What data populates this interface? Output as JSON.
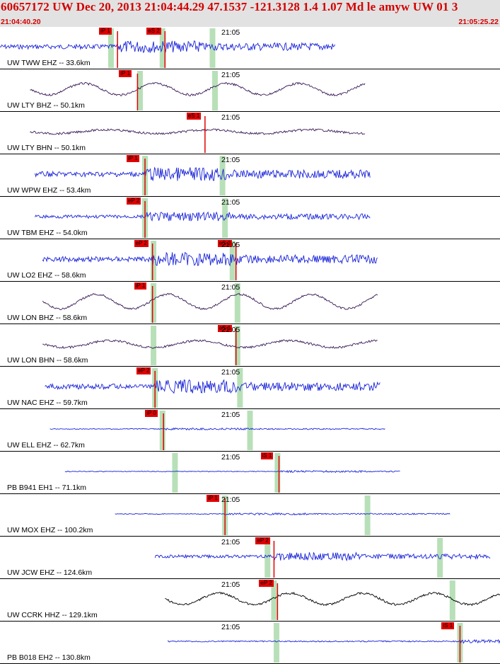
{
  "header": {
    "title": "60657172 UW Dec 20, 2013 21:04:44.29   47.1537 -121.3128  1.4 1.07 Md le amyw UW 01   3",
    "start_time": "21:04:40.20",
    "end_time": "21:05:25.22"
  },
  "colors": {
    "accent": "#d40000",
    "header_bg": "#e2e2e2",
    "pick_flag": "#e00000",
    "pick_line": "#e00000",
    "window_bar": "#b8e0b8",
    "trace_short_period": "#1a24d8",
    "trace_long_period": "#3a1a56",
    "trace_broadband": "#000000"
  },
  "panels": [
    {
      "label": "UW TWW EHZ -- 33.6km",
      "time_label": "21:05",
      "color": "blue",
      "amp": 0.18,
      "freq": 1.2,
      "trace_range": [
        0.0,
        0.67
      ],
      "picks": [
        {
          "label": "iP 1",
          "at": 0.235
        },
        {
          "label": "eS 2",
          "at": 0.33
        }
      ],
      "windows": [
        0.222,
        0.325,
        0.425
      ]
    },
    {
      "label": "UW LTY BHZ -- 50.1km",
      "time_label": "21:05",
      "color": "purple",
      "amp": 0.3,
      "freq": 0.1,
      "trace_range": [
        0.06,
        0.73
      ],
      "picks": [
        {
          "label": "iP 1",
          "at": 0.275
        }
      ],
      "windows": [
        0.28,
        0.43
      ]
    },
    {
      "label": "UW LTY BHN -- 50.1km",
      "time_label": "21:05",
      "color": "purple",
      "amp": 0.1,
      "freq": 0.07,
      "trace_range": [
        0.06,
        0.73
      ],
      "picks": [
        {
          "label": "eS 1",
          "at": 0.41
        }
      ],
      "windows": []
    },
    {
      "label": "UW WPW EHZ -- 53.4km",
      "time_label": "21:05",
      "color": "blue",
      "amp": 0.2,
      "freq": 1.2,
      "trace_range": [
        0.07,
        0.74
      ],
      "picks": [
        {
          "label": "iP 1",
          "at": 0.29
        }
      ],
      "windows": [
        0.29,
        0.445
      ]
    },
    {
      "label": "UW TBM EHZ -- 54.0km",
      "time_label": "21:05",
      "color": "blue",
      "amp": 0.13,
      "freq": 1.2,
      "trace_range": [
        0.07,
        0.74
      ],
      "picks": [
        {
          "label": "eP 2",
          "at": 0.29
        }
      ],
      "windows": [
        0.29,
        0.45
      ]
    },
    {
      "label": "UW LO2 EHZ -- 58.6km",
      "time_label": "21:05",
      "color": "blue",
      "amp": 0.2,
      "freq": 1.2,
      "trace_range": [
        0.085,
        0.755
      ],
      "picks": [
        {
          "label": "eP 2",
          "at": 0.305
        },
        {
          "label": "eS 2",
          "at": 0.472
        }
      ],
      "windows": [
        0.307,
        0.465
      ]
    },
    {
      "label": "UW LON BHZ -- 58.6km",
      "time_label": "21:05",
      "color": "purple",
      "amp": 0.38,
      "freq": 0.1,
      "trace_range": [
        0.085,
        0.755
      ],
      "picks": [
        {
          "label": "iP 1",
          "at": 0.305
        }
      ],
      "windows": [
        0.307,
        0.475
      ]
    },
    {
      "label": "UW LON BHN -- 58.6km",
      "time_label": "21:05",
      "color": "purple",
      "amp": 0.18,
      "freq": 0.08,
      "trace_range": [
        0.085,
        0.755
      ],
      "picks": [
        {
          "label": "eS 1",
          "at": 0.472
        }
      ],
      "windows": [
        0.307,
        0.475
      ]
    },
    {
      "label": "UW NAC EHZ -- 59.7km",
      "time_label": "21:05",
      "color": "blue",
      "amp": 0.2,
      "freq": 1.2,
      "trace_range": [
        0.09,
        0.76
      ],
      "picks": [
        {
          "label": "eP 2",
          "at": 0.31
        }
      ],
      "windows": [
        0.31,
        0.48
      ]
    },
    {
      "label": "UW ELL EHZ -- 62.7km",
      "time_label": "21:05",
      "color": "blue",
      "amp": 0.03,
      "freq": 1.2,
      "trace_range": [
        0.1,
        0.77
      ],
      "picks": [
        {
          "label": "iP 0",
          "at": 0.327
        }
      ],
      "windows": [
        0.325,
        0.5
      ]
    },
    {
      "label": "PB B941 EH1 -- 71.1km",
      "time_label": "21:05",
      "color": "blue",
      "amp": 0.03,
      "freq": 1.2,
      "trace_range": [
        0.13,
        0.8
      ],
      "picks": [
        {
          "label": "iS 1",
          "at": 0.558
        }
      ],
      "windows": [
        0.35,
        0.555
      ]
    },
    {
      "label": "UW MOX EHZ -- 100.2km",
      "time_label": "21:05",
      "color": "blue",
      "amp": 0.03,
      "freq": 1.2,
      "trace_range": [
        0.23,
        0.9
      ],
      "picks": [
        {
          "label": "iP 1",
          "at": 0.45
        }
      ],
      "windows": [
        0.45,
        0.735
      ]
    },
    {
      "label": "UW JCW EHZ -- 124.6km",
      "time_label": "21:05",
      "color": "blue",
      "amp": 0.12,
      "freq": 1.2,
      "trace_range": [
        0.31,
        0.98
      ],
      "picks": [
        {
          "label": "eP 2",
          "at": 0.548
        }
      ],
      "windows": [
        0.535,
        0.88
      ]
    },
    {
      "label": "UW CCRK HHZ -- 129.1km",
      "time_label": "21:05",
      "color": "black",
      "amp": 0.3,
      "freq": 0.1,
      "trace_range": [
        0.33,
        1.0
      ],
      "picks": [
        {
          "label": "eP 2",
          "at": 0.555
        }
      ],
      "windows": [
        0.548,
        0.905
      ]
    },
    {
      "label": "PB B018 EH2 -- 130.8km",
      "time_label": "21:05",
      "color": "blue",
      "amp": 0.05,
      "freq": 1.2,
      "trace_range": [
        0.335,
        1.0
      ],
      "picks": [
        {
          "label": "iS 1",
          "at": 0.92
        }
      ],
      "windows": [
        0.553,
        0.92
      ]
    }
  ]
}
